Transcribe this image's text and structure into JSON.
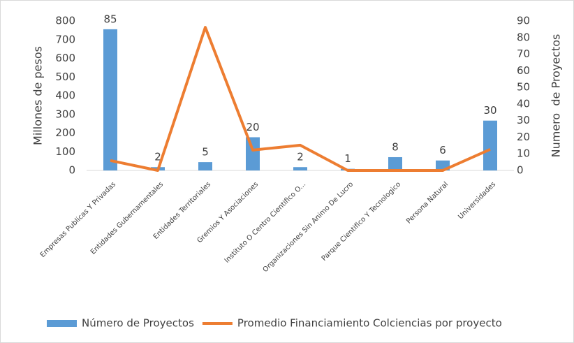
{
  "chart_data": {
    "type": "combo",
    "categories": [
      "Empresas Publicas Y Privadas",
      "Entidades Gubernamentales",
      "Entidades Territoriales",
      "Gremios Y Asociaciones",
      "Instituto O Centro Cientifico O...",
      "Organizaciones Sin Animo De Lucro",
      "Parque Cientifico Y Tecnologico",
      "Persona Natural",
      "Universidades"
    ],
    "series": [
      {
        "name": "Número de Proyectos",
        "type": "bar",
        "axis": "y2",
        "color": "#5b9bd5",
        "values": [
          85,
          2,
          5,
          20,
          2,
          1,
          8,
          6,
          30
        ]
      },
      {
        "name": "Promedio Financiamiento Colciencias por proyecto",
        "type": "line",
        "axis": "y",
        "color": "#ed7d31",
        "values": [
          53,
          0,
          766,
          109,
          135,
          0,
          0,
          0,
          113
        ]
      }
    ],
    "ylabel": "Millones de pesos",
    "y2label": "Numero  de Proyectos",
    "ylim": [
      0,
      800
    ],
    "yticks": [
      0,
      100,
      200,
      300,
      400,
      500,
      600,
      700,
      800
    ],
    "y2lim": [
      0,
      90
    ],
    "y2ticks": [
      0,
      10,
      20,
      30,
      40,
      50,
      60,
      70,
      80,
      90
    ],
    "legend": "bottom"
  }
}
